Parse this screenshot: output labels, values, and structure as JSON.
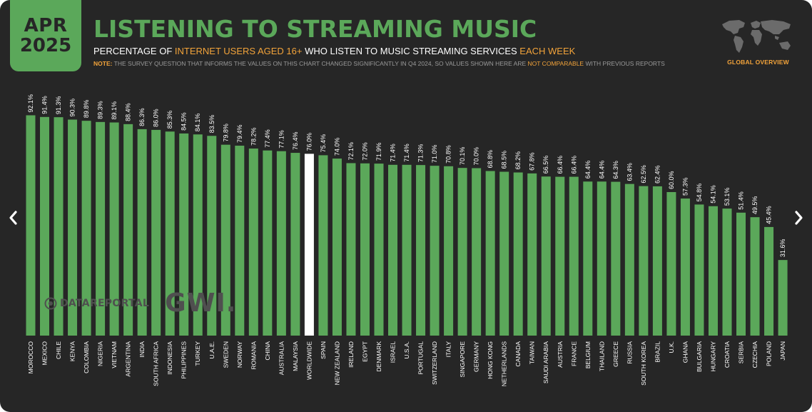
{
  "header": {
    "date_month": "APR",
    "date_year": "2025",
    "title": "LISTENING TO STREAMING MUSIC",
    "subtitle_part1": "PERCENTAGE OF ",
    "subtitle_highlight1": "INTERNET USERS AGED 16+",
    "subtitle_part2": " WHO LISTEN TO MUSIC STREAMING SERVICES ",
    "subtitle_highlight2": "EACH WEEK",
    "note_label": "NOTE:",
    "note_text1": " THE SURVEY QUESTION THAT INFORMS THE VALUES ON THIS CHART CHANGED SIGNIFICANTLY IN Q4 2024, SO VALUES SHOWN HERE ARE ",
    "note_highlight": "NOT COMPARABLE",
    "note_text2": " WITH PREVIOUS REPORTS",
    "global_label": "GLOBAL OVERVIEW"
  },
  "watermark": {
    "datareportal": "DATAREPORTAL",
    "gwi": "GWI."
  },
  "icons": {
    "map": "world-map-icon",
    "prev": "chevron-left-icon",
    "next": "chevron-right-icon"
  },
  "colors": {
    "background": "#262626",
    "bar": "#5ba85a",
    "highlight_bar": "#ffffff",
    "accent": "#f2a33a",
    "title": "#5ba85a"
  },
  "chart_data": {
    "type": "bar",
    "title": "LISTENING TO STREAMING MUSIC",
    "xlabel": "",
    "ylabel": "",
    "ylim": [
      0,
      100
    ],
    "grid": false,
    "highlight_category": "WORLDWIDE",
    "categories": [
      "MOROCCO",
      "MEXICO",
      "CHILE",
      "KENYA",
      "COLOMBIA",
      "NIGERIA",
      "VIETNAM",
      "ARGENTINA",
      "INDIA",
      "SOUTH AFRICA",
      "INDONESIA",
      "PHILIPPINES",
      "TURKEY",
      "U.A.E.",
      "SWEDEN",
      "NORWAY",
      "ROMANIA",
      "CHINA",
      "AUSTRALIA",
      "MALAYSIA",
      "WORLDWIDE",
      "SPAIN",
      "NEW ZEALAND",
      "IRELAND",
      "EGYPT",
      "DENMARK",
      "ISRAEL",
      "U.S.A.",
      "PORTUGAL",
      "SWITZERLAND",
      "ITALY",
      "SINGAPORE",
      "GERMANY",
      "HONG KONG",
      "NETHERLANDS",
      "CANADA",
      "TAIWAN",
      "SAUDI ARABIA",
      "AUSTRIA",
      "FRANCE",
      "BELGIUM",
      "THAILAND",
      "GREECE",
      "RUSSIA",
      "SOUTH KOREA",
      "BRAZIL",
      "U.K.",
      "GHANA",
      "BULGARIA",
      "HUNGARY",
      "CROATIA",
      "SERBIA",
      "CZECHIA",
      "POLAND",
      "JAPAN"
    ],
    "values": [
      92.1,
      91.4,
      91.3,
      90.3,
      89.8,
      89.3,
      89.1,
      88.4,
      86.3,
      86.0,
      85.3,
      84.5,
      84.1,
      83.5,
      79.8,
      79.4,
      78.2,
      77.4,
      77.1,
      76.4,
      76.0,
      75.4,
      74.0,
      72.1,
      72.0,
      71.9,
      71.4,
      71.4,
      71.3,
      71.0,
      70.8,
      70.1,
      70.0,
      68.8,
      68.5,
      68.2,
      67.8,
      66.5,
      66.4,
      66.4,
      64.4,
      64.4,
      64.3,
      63.4,
      62.5,
      62.4,
      60.0,
      57.3,
      54.8,
      54.1,
      53.1,
      51.4,
      49.5,
      45.4,
      31.6
    ],
    "data_labels": [
      "92.1%",
      "91.4%",
      "91.3%",
      "90.3%",
      "89.8%",
      "89.3%",
      "89.1%",
      "88.4%",
      "86.3%",
      "86.0%",
      "85.3%",
      "84.5%",
      "84.1%",
      "83.5%",
      "79.8%",
      "79.4%",
      "78.2%",
      "77.4%",
      "77.1%",
      "76.4%",
      "76.0%",
      "75.4%",
      "74.0%",
      "72.1%",
      "72.0%",
      "71.9%",
      "71.4%",
      "71.4%",
      "71.3%",
      "71.0%",
      "70.8%",
      "70.1%",
      "70.0%",
      "68.8%",
      "68.5%",
      "68.2%",
      "67.8%",
      "66.5%",
      "66.4%",
      "66.4%",
      "64.4%",
      "64.4%",
      "64.3%",
      "63.4%",
      "62.5%",
      "62.4%",
      "60.0%",
      "57.3%",
      "54.8%",
      "54.1%",
      "53.1%",
      "51.4%",
      "49.5%",
      "45.4%",
      "31.6%"
    ]
  }
}
